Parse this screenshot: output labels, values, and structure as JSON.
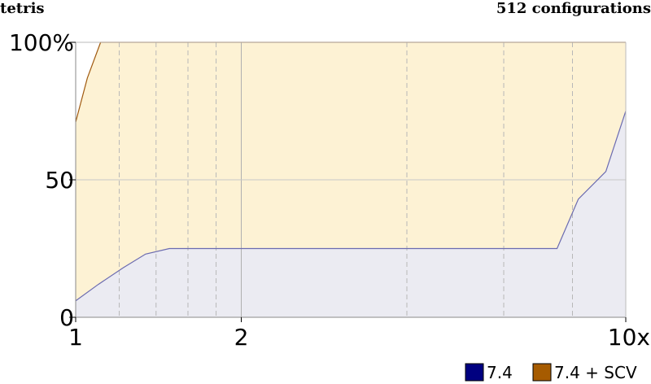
{
  "header": {
    "left": "tetris",
    "right": "512 configurations"
  },
  "chart_data": {
    "type": "area",
    "x_scale": "log",
    "xlim": [
      1,
      10
    ],
    "ylim": [
      0,
      100
    ],
    "x_ticks": [
      {
        "value": 1,
        "label": "1"
      },
      {
        "value": 2,
        "label": "2"
      },
      {
        "value": 10,
        "label": "10x"
      }
    ],
    "y_ticks": [
      {
        "value": 0,
        "label": "0"
      },
      {
        "value": 50,
        "label": "50"
      },
      {
        "value": 100,
        "label": "100%"
      }
    ],
    "minor_x_gridlines": [
      1.2,
      1.4,
      1.6,
      1.8,
      4,
      6,
      8
    ],
    "series": [
      {
        "name": "7.4",
        "line_color": "#6b6bb0",
        "fill_color": "#ebebf2",
        "swatch_color": "#000080",
        "x": [
          1.0,
          1.1,
          1.22,
          1.34,
          1.48,
          1.65,
          2.0,
          3.0,
          4.0,
          5.0,
          6.0,
          7.5,
          8.2,
          9.2,
          10.0
        ],
        "y": [
          6,
          12,
          18,
          23,
          25,
          25,
          25,
          25,
          25,
          25,
          25,
          25,
          43,
          53,
          75
        ]
      },
      {
        "name": "7.4 + SCV",
        "line_color": "#a05a10",
        "fill_color": "#fdf2d4",
        "swatch_color": "#a65b00",
        "x": [
          1.0,
          1.05,
          1.11,
          1.5,
          2.0,
          5.0,
          10.0
        ],
        "y": [
          71,
          87,
          100,
          100,
          100,
          100,
          100
        ]
      }
    ],
    "legend_position": "bottom-right",
    "grid": true
  }
}
